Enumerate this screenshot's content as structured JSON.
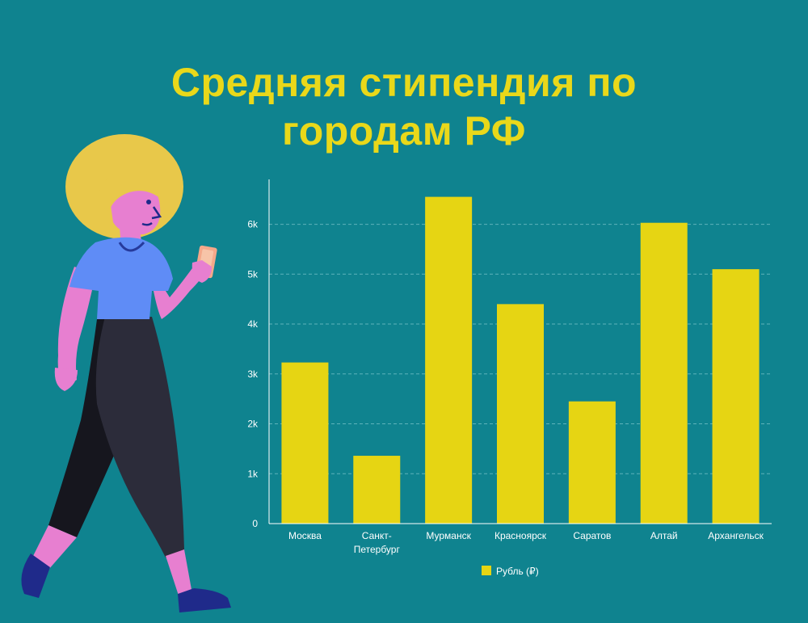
{
  "title": {
    "line1": "Средняя стипендия по",
    "line2": "городам РФ"
  },
  "colors": {
    "background": "#0f838f",
    "title": "#e9d81a",
    "bar": "#e6d513",
    "grid": "#5fb3bb",
    "axis": "#ffffff"
  },
  "chart_data": {
    "type": "bar",
    "categories": [
      [
        "Москва"
      ],
      [
        "Санкт-",
        "Петербург"
      ],
      [
        "Мурманск"
      ],
      [
        "Красноярск"
      ],
      [
        "Саратов"
      ],
      [
        "Алтай"
      ],
      [
        "Архангельск"
      ]
    ],
    "series": [
      {
        "name": "Рубль (₽)",
        "values": [
          3230,
          1360,
          6550,
          4400,
          2450,
          6030,
          5100
        ]
      }
    ],
    "yticks": [
      "0",
      "1k",
      "2k",
      "3k",
      "4k",
      "5k",
      "6k"
    ],
    "ylim": [
      0,
      6900
    ],
    "grid": true,
    "legend": "bottom-center"
  }
}
